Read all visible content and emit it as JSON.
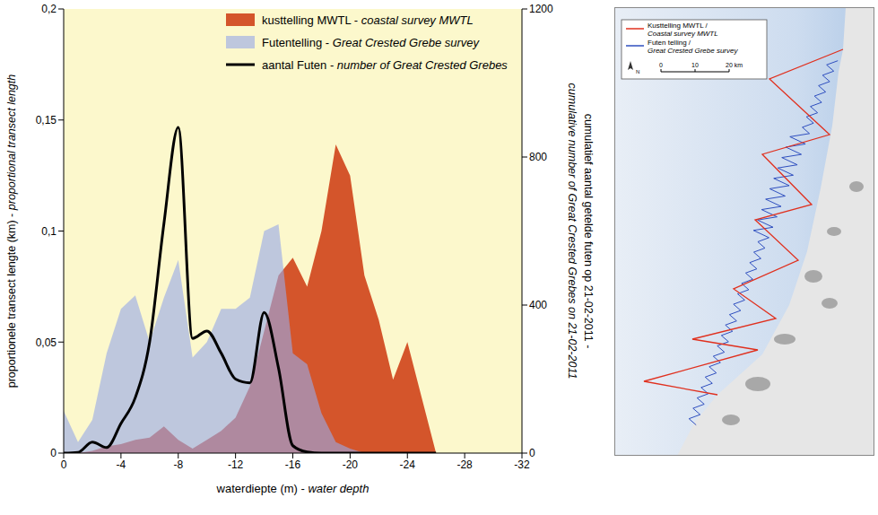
{
  "chart_data": {
    "type": "area",
    "x_label": "waterdiepte (m) - water depth",
    "y_label": "proportionele transect lengte (km) - proportional transect length",
    "y2_label": "cumulatief aantal getelde futen op 21-02-2011 - cumulative number of Great Crested Grebes on 21-02-2011",
    "x": [
      0,
      -1,
      -2,
      -3,
      -4,
      -5,
      -6,
      -7,
      -8,
      -9,
      -10,
      -11,
      -12,
      -13,
      -14,
      -15,
      -16,
      -17,
      -18,
      -19,
      -20,
      -21,
      -22,
      -23,
      -24,
      -25,
      -26
    ],
    "xlim": [
      0,
      -32
    ],
    "xticks": [
      0,
      -4,
      -8,
      -12,
      -16,
      -20,
      -24,
      -28,
      -32
    ],
    "ylim": [
      0,
      0.2
    ],
    "yticks": [
      0,
      {
        "value": 0.05,
        "label": "0,05"
      },
      {
        "value": 0.1,
        "label": "0,1"
      },
      {
        "value": 0.15,
        "label": "0,15"
      },
      {
        "value": 0.2,
        "label": "0,2"
      }
    ],
    "y2lim": [
      0,
      1200
    ],
    "y2ticks": [
      0,
      400,
      800,
      1200
    ],
    "legend": "upper right",
    "grid": false,
    "series": [
      {
        "name": "kusttelling MWTL - coastal survey MWTL",
        "type": "area",
        "color": "#d4552b",
        "values": [
          0,
          0,
          0.001,
          0.003,
          0.004,
          0.006,
          0.007,
          0.012,
          0.006,
          0.002,
          0.006,
          0.01,
          0.016,
          0.03,
          0.055,
          0.08,
          0.088,
          0.075,
          0.1,
          0.139,
          0.125,
          0.08,
          0.06,
          0.033,
          0.05,
          0.025,
          0
        ]
      },
      {
        "name": "Futentelling - Great Crested Grebe survey",
        "type": "area",
        "color": "#97a9e6",
        "values": [
          0.019,
          0.005,
          0.015,
          0.045,
          0.065,
          0.071,
          0.05,
          0.07,
          0.087,
          0.043,
          0.05,
          0.065,
          0.065,
          0.07,
          0.1,
          0.103,
          0.045,
          0.04,
          0.018,
          0.005,
          0.002,
          0,
          0,
          0,
          0,
          0,
          0
        ]
      },
      {
        "name": "aantal Futen - number of Great Crested Grebes",
        "type": "line",
        "color": "#000000",
        "axis": "y2",
        "line_style": "solid",
        "values": [
          0,
          2,
          30,
          15,
          80,
          150,
          300,
          620,
          880,
          310,
          330,
          270,
          200,
          190,
          380,
          230,
          20,
          3,
          0,
          0,
          0,
          0,
          0,
          0,
          0,
          0,
          0
        ]
      }
    ]
  },
  "map": {
    "legend": [
      {
        "label": "Kusttelling MWTL /",
        "label_en": "Coastal survey MWTL",
        "color": "#e0301e"
      },
      {
        "label": "Futen telling /",
        "label_en": "Great Crested Grebe survey",
        "color": "#2f4fbf"
      }
    ],
    "scale": [
      "0",
      "10",
      "20 km"
    ],
    "north": "N"
  }
}
